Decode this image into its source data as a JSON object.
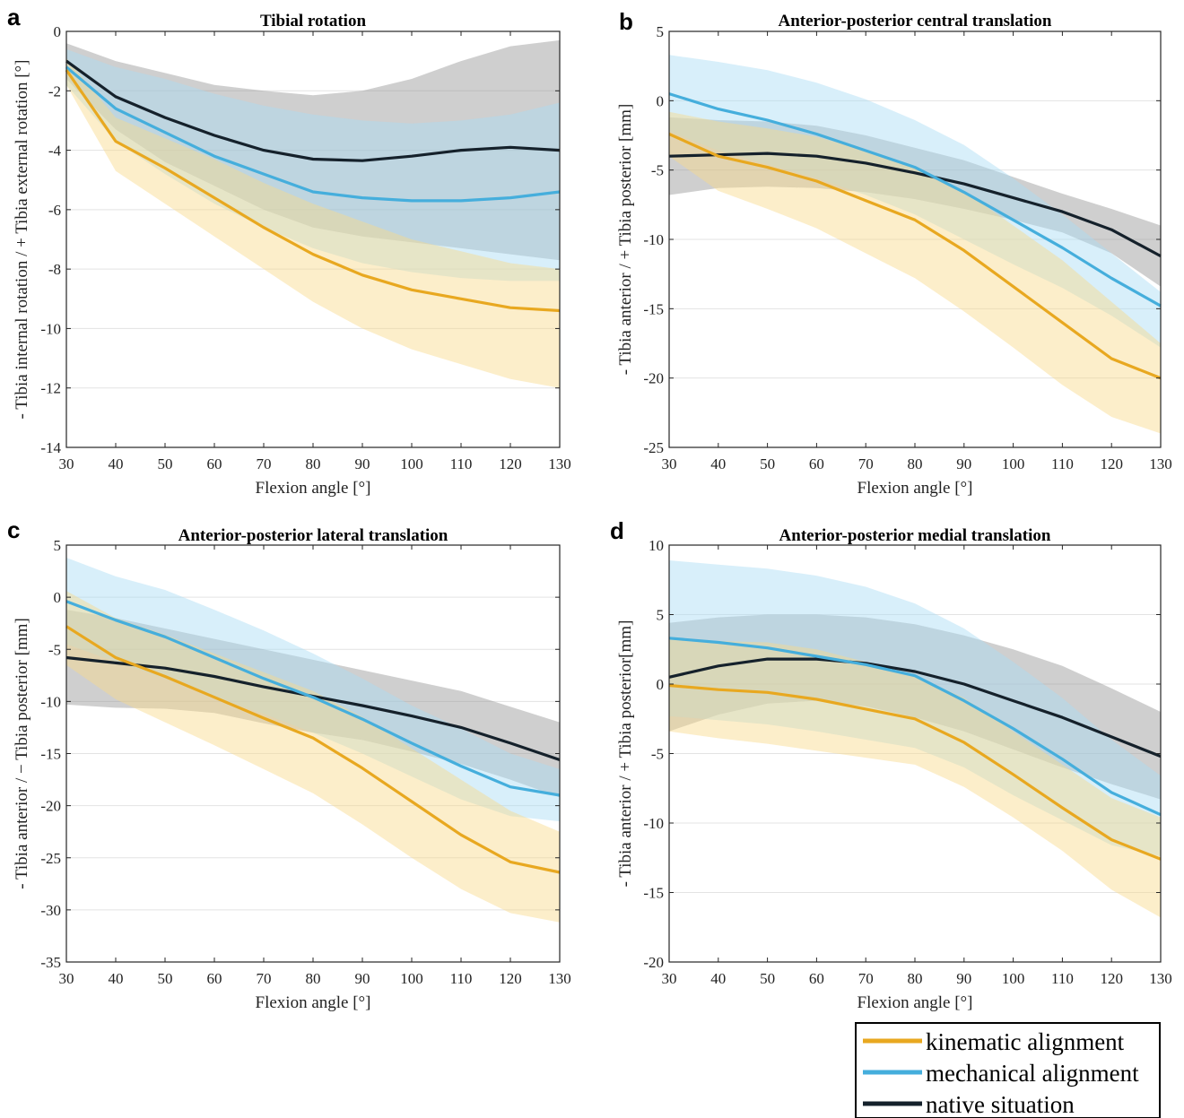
{
  "colors": {
    "kinematic": "#E8A820",
    "kinematic_band": "#F9D98A",
    "mechanical": "#45AEDC",
    "mechanical_band": "#A8DCF5",
    "native": "#15212B",
    "native_band": "#8C8C8C"
  },
  "legend": {
    "kinematic": "kinematic alignment",
    "mechanical": "mechanical alignment",
    "native": "native situation"
  },
  "chart_data": [
    {
      "panel": "a",
      "type": "line",
      "title": "Tibial rotation",
      "xlabel": "Flexion angle [°]",
      "ylabel": "- Tibia internal rotation / + Tibia external rotation [°]",
      "xlim": [
        30,
        130
      ],
      "ylim": [
        -14,
        0
      ],
      "xticks": [
        30,
        40,
        50,
        60,
        70,
        80,
        90,
        100,
        110,
        120,
        130
      ],
      "yticks": [
        0,
        -2,
        -4,
        -6,
        -8,
        -10,
        -12,
        -14
      ],
      "grid": "horizontal",
      "x": [
        30,
        40,
        50,
        60,
        70,
        80,
        90,
        100,
        110,
        120,
        130
      ],
      "series": [
        {
          "name": "kinematic alignment",
          "key": "kinematic",
          "mean": [
            -1.3,
            -3.7,
            -4.6,
            -5.6,
            -6.6,
            -7.5,
            -8.2,
            -8.7,
            -9.0,
            -9.3,
            -9.4
          ],
          "upper": [
            -0.9,
            -2.9,
            -3.6,
            -4.3,
            -5.1,
            -5.8,
            -6.4,
            -7.0,
            -7.4,
            -7.8,
            -8.0
          ],
          "lower": [
            -1.8,
            -4.7,
            -5.8,
            -6.9,
            -8.0,
            -9.1,
            -10.0,
            -10.7,
            -11.2,
            -11.7,
            -12.0
          ]
        },
        {
          "name": "mechanical alignment",
          "key": "mechanical",
          "mean": [
            -1.2,
            -2.6,
            -3.4,
            -4.2,
            -4.8,
            -5.4,
            -5.6,
            -5.7,
            -5.7,
            -5.6,
            -5.4
          ],
          "upper": [
            -0.6,
            -1.2,
            -1.6,
            -2.1,
            -2.5,
            -2.8,
            -3.0,
            -3.1,
            -3.0,
            -2.8,
            -2.4
          ],
          "lower": [
            -1.8,
            -3.7,
            -4.8,
            -5.8,
            -6.6,
            -7.3,
            -7.8,
            -8.1,
            -8.3,
            -8.4,
            -8.4
          ]
        },
        {
          "name": "native situation",
          "key": "native",
          "mean": [
            -1.0,
            -2.2,
            -2.9,
            -3.5,
            -4.0,
            -4.3,
            -4.35,
            -4.2,
            -4.0,
            -3.9,
            -4.0
          ],
          "upper": [
            -0.4,
            -1.0,
            -1.4,
            -1.8,
            -2.0,
            -2.15,
            -2.0,
            -1.6,
            -1.0,
            -0.5,
            -0.3
          ],
          "lower": [
            -1.6,
            -3.3,
            -4.4,
            -5.2,
            -6.0,
            -6.6,
            -6.9,
            -7.1,
            -7.3,
            -7.5,
            -7.7
          ]
        }
      ]
    },
    {
      "panel": "b",
      "type": "line",
      "title": "Anterior-posterior central translation",
      "xlabel": "Flexion angle [°]",
      "ylabel": "- Tibia anterior / + Tibia posterior [mm]",
      "xlim": [
        30,
        130
      ],
      "ylim": [
        -25,
        5
      ],
      "xticks": [
        30,
        40,
        50,
        60,
        70,
        80,
        90,
        100,
        110,
        120,
        130
      ],
      "yticks": [
        5,
        0,
        -5,
        -10,
        -15,
        -20,
        -25
      ],
      "grid": "horizontal",
      "x": [
        30,
        40,
        50,
        60,
        70,
        80,
        90,
        100,
        110,
        120,
        130
      ],
      "series": [
        {
          "name": "kinematic alignment",
          "key": "kinematic",
          "mean": [
            -2.4,
            -4.0,
            -4.8,
            -5.8,
            -7.2,
            -8.6,
            -10.8,
            -13.4,
            -16.0,
            -18.6,
            -20.0
          ],
          "upper": [
            -0.8,
            -1.5,
            -2.0,
            -2.6,
            -3.6,
            -4.8,
            -6.5,
            -9.0,
            -11.5,
            -14.5,
            -17.5
          ],
          "lower": [
            -4.0,
            -6.5,
            -7.8,
            -9.2,
            -11.0,
            -12.8,
            -15.2,
            -17.8,
            -20.5,
            -22.8,
            -24.0
          ]
        },
        {
          "name": "mechanical alignment",
          "key": "mechanical",
          "mean": [
            0.5,
            -0.6,
            -1.4,
            -2.4,
            -3.6,
            -4.8,
            -6.6,
            -8.6,
            -10.6,
            -12.8,
            -14.8
          ],
          "upper": [
            3.3,
            2.8,
            2.2,
            1.3,
            0.1,
            -1.4,
            -3.2,
            -5.6,
            -8.2,
            -11.0,
            -13.8
          ],
          "lower": [
            -2.2,
            -3.6,
            -4.6,
            -5.6,
            -6.8,
            -8.2,
            -10.0,
            -11.8,
            -13.5,
            -15.5,
            -17.8
          ]
        },
        {
          "name": "native situation",
          "key": "native",
          "mean": [
            -4.0,
            -3.9,
            -3.8,
            -4.0,
            -4.5,
            -5.2,
            -6.0,
            -7.0,
            -8.0,
            -9.3,
            -11.2
          ],
          "upper": [
            -1.2,
            -1.4,
            -1.5,
            -1.8,
            -2.5,
            -3.4,
            -4.3,
            -5.5,
            -6.7,
            -7.8,
            -9.0
          ],
          "lower": [
            -6.8,
            -6.3,
            -6.2,
            -6.3,
            -6.6,
            -7.1,
            -7.8,
            -8.6,
            -9.5,
            -11.0,
            -13.4
          ]
        }
      ]
    },
    {
      "panel": "c",
      "type": "line",
      "title": "Anterior-posterior lateral translation",
      "xlabel": "Flexion angle [°]",
      "ylabel": "- Tibia anterior / − Tibia posterior  [mm]",
      "xlim": [
        30,
        130
      ],
      "ylim": [
        -35,
        5
      ],
      "xticks": [
        30,
        40,
        50,
        60,
        70,
        80,
        90,
        100,
        110,
        120,
        130
      ],
      "yticks": [
        5,
        0,
        -5,
        -10,
        -15,
        -20,
        -25,
        -30,
        -35
      ],
      "grid": "horizontal",
      "x": [
        30,
        40,
        50,
        60,
        70,
        80,
        90,
        100,
        110,
        120,
        130
      ],
      "series": [
        {
          "name": "kinematic alignment",
          "key": "kinematic",
          "mean": [
            -2.8,
            -5.8,
            -7.6,
            -9.6,
            -11.6,
            -13.5,
            -16.4,
            -19.6,
            -22.8,
            -25.4,
            -26.4
          ],
          "upper": [
            0.6,
            -2.0,
            -3.6,
            -5.4,
            -7.2,
            -9.0,
            -11.5,
            -14.5,
            -17.5,
            -20.5,
            -22.5
          ],
          "lower": [
            -6.5,
            -9.8,
            -12.0,
            -14.2,
            -16.5,
            -18.8,
            -21.8,
            -25.0,
            -28.0,
            -30.3,
            -31.2
          ]
        },
        {
          "name": "mechanical alignment",
          "key": "mechanical",
          "mean": [
            -0.4,
            -2.2,
            -3.8,
            -5.8,
            -7.8,
            -9.6,
            -11.7,
            -14.0,
            -16.2,
            -18.2,
            -19.0
          ],
          "upper": [
            3.8,
            2.0,
            0.7,
            -1.2,
            -3.2,
            -5.4,
            -7.8,
            -10.4,
            -12.6,
            -15.0,
            -16.5
          ],
          "lower": [
            -4.5,
            -6.2,
            -7.8,
            -9.6,
            -11.2,
            -13.0,
            -15.0,
            -17.2,
            -19.4,
            -21.0,
            -21.5
          ]
        },
        {
          "name": "native situation",
          "key": "native",
          "mean": [
            -5.8,
            -6.3,
            -6.8,
            -7.6,
            -8.6,
            -9.5,
            -10.4,
            -11.4,
            -12.5,
            -14.0,
            -15.6
          ],
          "upper": [
            -1.2,
            -2.0,
            -3.0,
            -4.0,
            -5.0,
            -6.0,
            -7.0,
            -8.0,
            -9.0,
            -10.5,
            -12.0
          ],
          "lower": [
            -10.3,
            -10.6,
            -10.7,
            -11.1,
            -12.1,
            -13.0,
            -13.7,
            -14.8,
            -16.0,
            -17.5,
            -19.2
          ]
        }
      ]
    },
    {
      "panel": "d",
      "type": "line",
      "title": "Anterior-posterior medial translation",
      "xlabel": "Flexion angle [°]",
      "ylabel": "- Tibia anterior / + Tibia posterior[mm]",
      "xlim": [
        30,
        130
      ],
      "ylim": [
        -20,
        10
      ],
      "xticks": [
        30,
        40,
        50,
        60,
        70,
        80,
        90,
        100,
        110,
        120,
        130
      ],
      "yticks": [
        10,
        5,
        0,
        -5,
        -10,
        -15,
        -20
      ],
      "grid": "horizontal",
      "x": [
        30,
        40,
        50,
        60,
        70,
        80,
        90,
        100,
        110,
        120,
        130
      ],
      "series": [
        {
          "name": "kinematic alignment",
          "key": "kinematic",
          "mean": [
            -0.1,
            -0.4,
            -0.6,
            -1.1,
            -1.8,
            -2.5,
            -4.2,
            -6.5,
            -8.9,
            -11.2,
            -12.6
          ],
          "upper": [
            3.2,
            3.1,
            3.0,
            2.5,
            1.6,
            0.6,
            -1.0,
            -3.4,
            -5.8,
            -8.2,
            -9.6
          ],
          "lower": [
            -3.4,
            -3.9,
            -4.3,
            -4.8,
            -5.3,
            -5.8,
            -7.4,
            -9.6,
            -12.0,
            -14.8,
            -16.8
          ]
        },
        {
          "name": "mechanical alignment",
          "key": "mechanical",
          "mean": [
            3.3,
            3.0,
            2.6,
            2.0,
            1.4,
            0.6,
            -1.2,
            -3.2,
            -5.4,
            -7.8,
            -9.4
          ],
          "upper": [
            8.9,
            8.6,
            8.3,
            7.8,
            7.0,
            5.8,
            4.0,
            1.6,
            -1.0,
            -4.0,
            -6.6
          ],
          "lower": [
            -2.3,
            -2.6,
            -2.9,
            -3.4,
            -4.0,
            -4.6,
            -6.0,
            -8.0,
            -9.8,
            -11.6,
            -12.4
          ]
        },
        {
          "name": "native situation",
          "key": "native",
          "mean": [
            0.5,
            1.3,
            1.8,
            1.8,
            1.5,
            0.9,
            0.0,
            -1.2,
            -2.4,
            -3.8,
            -5.2
          ],
          "upper": [
            4.4,
            4.8,
            5.0,
            5.0,
            4.8,
            4.3,
            3.5,
            2.5,
            1.3,
            -0.3,
            -2.0
          ],
          "lower": [
            -3.4,
            -2.2,
            -1.4,
            -1.2,
            -1.6,
            -2.4,
            -3.4,
            -4.7,
            -6.0,
            -7.2,
            -8.3
          ]
        }
      ]
    }
  ]
}
